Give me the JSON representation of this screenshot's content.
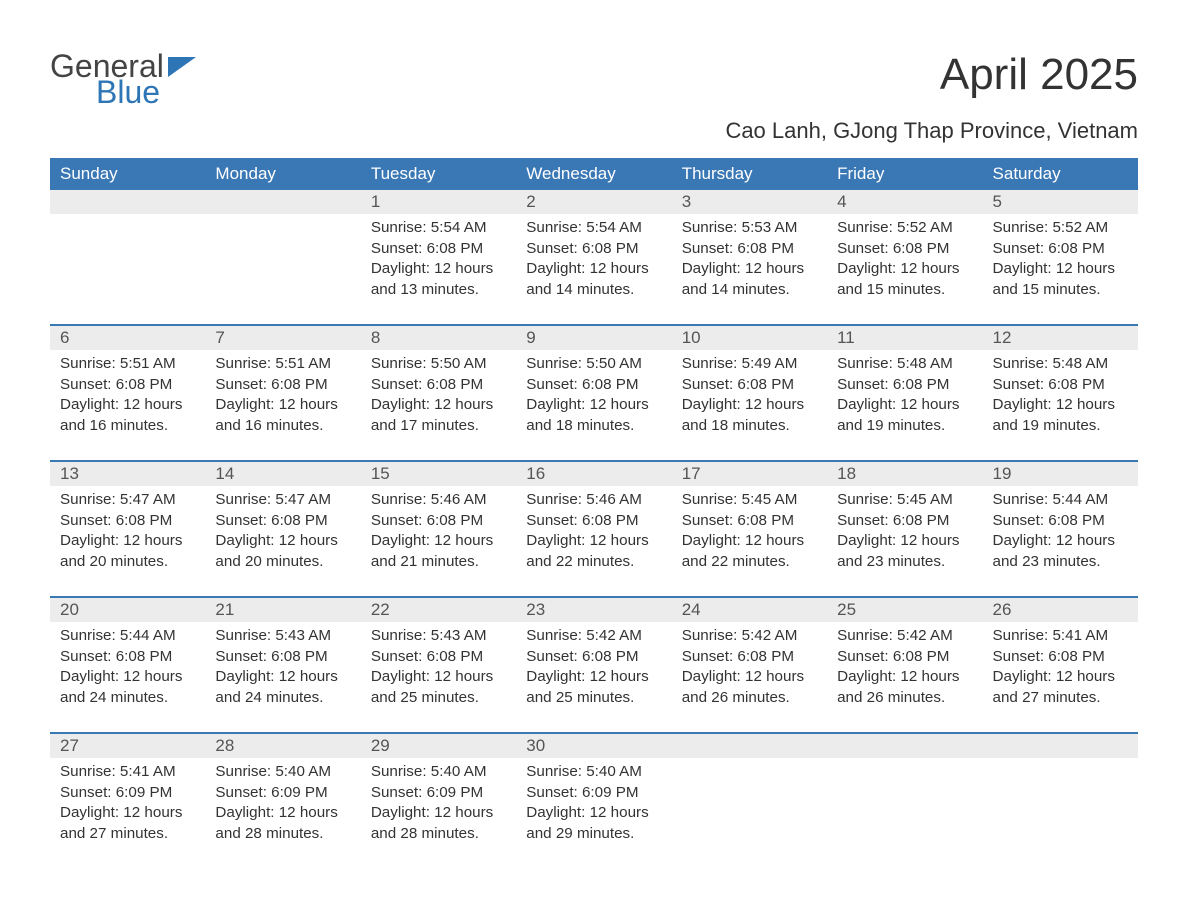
{
  "brand": {
    "name_part1": "General",
    "name_part2": "Blue",
    "color_general": "#444444",
    "color_blue": "#2e75b6",
    "icon_fill": "#2e75b6"
  },
  "header": {
    "month_title": "April 2025",
    "location": "Cao Lanh, GJong Thap Province, Vietnam"
  },
  "styling": {
    "header_bg": "#3a77b5",
    "header_text": "#ffffff",
    "daynum_bg": "#ececec",
    "daynum_text": "#555555",
    "body_text": "#333333",
    "separator_color": "#3a77b5",
    "page_bg": "#ffffff",
    "weekday_fontsize": 17,
    "daynum_fontsize": 17,
    "detail_fontsize": 15.2,
    "title_fontsize": 44,
    "location_fontsize": 22
  },
  "weekdays": [
    "Sunday",
    "Monday",
    "Tuesday",
    "Wednesday",
    "Thursday",
    "Friday",
    "Saturday"
  ],
  "weeks": [
    {
      "days": [
        {
          "num": "",
          "sunrise": "",
          "sunset": "",
          "daylight": ""
        },
        {
          "num": "",
          "sunrise": "",
          "sunset": "",
          "daylight": ""
        },
        {
          "num": "1",
          "sunrise": "Sunrise: 5:54 AM",
          "sunset": "Sunset: 6:08 PM",
          "daylight": "Daylight: 12 hours and 13 minutes."
        },
        {
          "num": "2",
          "sunrise": "Sunrise: 5:54 AM",
          "sunset": "Sunset: 6:08 PM",
          "daylight": "Daylight: 12 hours and 14 minutes."
        },
        {
          "num": "3",
          "sunrise": "Sunrise: 5:53 AM",
          "sunset": "Sunset: 6:08 PM",
          "daylight": "Daylight: 12 hours and 14 minutes."
        },
        {
          "num": "4",
          "sunrise": "Sunrise: 5:52 AM",
          "sunset": "Sunset: 6:08 PM",
          "daylight": "Daylight: 12 hours and 15 minutes."
        },
        {
          "num": "5",
          "sunrise": "Sunrise: 5:52 AM",
          "sunset": "Sunset: 6:08 PM",
          "daylight": "Daylight: 12 hours and 15 minutes."
        }
      ]
    },
    {
      "days": [
        {
          "num": "6",
          "sunrise": "Sunrise: 5:51 AM",
          "sunset": "Sunset: 6:08 PM",
          "daylight": "Daylight: 12 hours and 16 minutes."
        },
        {
          "num": "7",
          "sunrise": "Sunrise: 5:51 AM",
          "sunset": "Sunset: 6:08 PM",
          "daylight": "Daylight: 12 hours and 16 minutes."
        },
        {
          "num": "8",
          "sunrise": "Sunrise: 5:50 AM",
          "sunset": "Sunset: 6:08 PM",
          "daylight": "Daylight: 12 hours and 17 minutes."
        },
        {
          "num": "9",
          "sunrise": "Sunrise: 5:50 AM",
          "sunset": "Sunset: 6:08 PM",
          "daylight": "Daylight: 12 hours and 18 minutes."
        },
        {
          "num": "10",
          "sunrise": "Sunrise: 5:49 AM",
          "sunset": "Sunset: 6:08 PM",
          "daylight": "Daylight: 12 hours and 18 minutes."
        },
        {
          "num": "11",
          "sunrise": "Sunrise: 5:48 AM",
          "sunset": "Sunset: 6:08 PM",
          "daylight": "Daylight: 12 hours and 19 minutes."
        },
        {
          "num": "12",
          "sunrise": "Sunrise: 5:48 AM",
          "sunset": "Sunset: 6:08 PM",
          "daylight": "Daylight: 12 hours and 19 minutes."
        }
      ]
    },
    {
      "days": [
        {
          "num": "13",
          "sunrise": "Sunrise: 5:47 AM",
          "sunset": "Sunset: 6:08 PM",
          "daylight": "Daylight: 12 hours and 20 minutes."
        },
        {
          "num": "14",
          "sunrise": "Sunrise: 5:47 AM",
          "sunset": "Sunset: 6:08 PM",
          "daylight": "Daylight: 12 hours and 20 minutes."
        },
        {
          "num": "15",
          "sunrise": "Sunrise: 5:46 AM",
          "sunset": "Sunset: 6:08 PM",
          "daylight": "Daylight: 12 hours and 21 minutes."
        },
        {
          "num": "16",
          "sunrise": "Sunrise: 5:46 AM",
          "sunset": "Sunset: 6:08 PM",
          "daylight": "Daylight: 12 hours and 22 minutes."
        },
        {
          "num": "17",
          "sunrise": "Sunrise: 5:45 AM",
          "sunset": "Sunset: 6:08 PM",
          "daylight": "Daylight: 12 hours and 22 minutes."
        },
        {
          "num": "18",
          "sunrise": "Sunrise: 5:45 AM",
          "sunset": "Sunset: 6:08 PM",
          "daylight": "Daylight: 12 hours and 23 minutes."
        },
        {
          "num": "19",
          "sunrise": "Sunrise: 5:44 AM",
          "sunset": "Sunset: 6:08 PM",
          "daylight": "Daylight: 12 hours and 23 minutes."
        }
      ]
    },
    {
      "days": [
        {
          "num": "20",
          "sunrise": "Sunrise: 5:44 AM",
          "sunset": "Sunset: 6:08 PM",
          "daylight": "Daylight: 12 hours and 24 minutes."
        },
        {
          "num": "21",
          "sunrise": "Sunrise: 5:43 AM",
          "sunset": "Sunset: 6:08 PM",
          "daylight": "Daylight: 12 hours and 24 minutes."
        },
        {
          "num": "22",
          "sunrise": "Sunrise: 5:43 AM",
          "sunset": "Sunset: 6:08 PM",
          "daylight": "Daylight: 12 hours and 25 minutes."
        },
        {
          "num": "23",
          "sunrise": "Sunrise: 5:42 AM",
          "sunset": "Sunset: 6:08 PM",
          "daylight": "Daylight: 12 hours and 25 minutes."
        },
        {
          "num": "24",
          "sunrise": "Sunrise: 5:42 AM",
          "sunset": "Sunset: 6:08 PM",
          "daylight": "Daylight: 12 hours and 26 minutes."
        },
        {
          "num": "25",
          "sunrise": "Sunrise: 5:42 AM",
          "sunset": "Sunset: 6:08 PM",
          "daylight": "Daylight: 12 hours and 26 minutes."
        },
        {
          "num": "26",
          "sunrise": "Sunrise: 5:41 AM",
          "sunset": "Sunset: 6:08 PM",
          "daylight": "Daylight: 12 hours and 27 minutes."
        }
      ]
    },
    {
      "days": [
        {
          "num": "27",
          "sunrise": "Sunrise: 5:41 AM",
          "sunset": "Sunset: 6:09 PM",
          "daylight": "Daylight: 12 hours and 27 minutes."
        },
        {
          "num": "28",
          "sunrise": "Sunrise: 5:40 AM",
          "sunset": "Sunset: 6:09 PM",
          "daylight": "Daylight: 12 hours and 28 minutes."
        },
        {
          "num": "29",
          "sunrise": "Sunrise: 5:40 AM",
          "sunset": "Sunset: 6:09 PM",
          "daylight": "Daylight: 12 hours and 28 minutes."
        },
        {
          "num": "30",
          "sunrise": "Sunrise: 5:40 AM",
          "sunset": "Sunset: 6:09 PM",
          "daylight": "Daylight: 12 hours and 29 minutes."
        },
        {
          "num": "",
          "sunrise": "",
          "sunset": "",
          "daylight": ""
        },
        {
          "num": "",
          "sunrise": "",
          "sunset": "",
          "daylight": ""
        },
        {
          "num": "",
          "sunrise": "",
          "sunset": "",
          "daylight": ""
        }
      ]
    }
  ]
}
